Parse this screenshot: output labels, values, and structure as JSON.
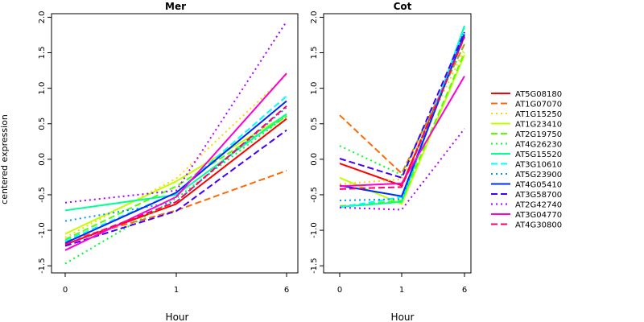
{
  "chart_data": [
    {
      "type": "line",
      "title": "Mer",
      "xlabel": "Hour",
      "ylabel": "centered expression",
      "x": [
        "0",
        "1",
        "6"
      ],
      "ylim": [
        -1.6,
        2.05
      ],
      "yticks": [
        -1.5,
        -1.0,
        -0.5,
        0.0,
        0.5,
        1.0,
        1.5,
        2.0
      ],
      "yticklabels": [
        "-1.5",
        "-1.0",
        "-0.5",
        "0.0",
        "0.5",
        "1.0",
        "1.5",
        "2.0"
      ],
      "grid": false,
      "series": [
        {
          "name": "AT5G08180",
          "color": "#ff0000",
          "dash": "solid",
          "values": [
            -1.2,
            -0.63,
            0.57
          ]
        },
        {
          "name": "AT1G07070",
          "color": "#ff6a00",
          "dash": "dashed",
          "values": [
            -1.15,
            -0.72,
            -0.16
          ]
        },
        {
          "name": "AT1G15250",
          "color": "#ffd500",
          "dash": "dotted",
          "values": [
            -1.1,
            -0.27,
            1.19
          ]
        },
        {
          "name": "AT1G23410",
          "color": "#bfff00",
          "dash": "solid",
          "values": [
            -1.05,
            -0.31,
            0.63
          ]
        },
        {
          "name": "AT2G19750",
          "color": "#55ff00",
          "dash": "dashed",
          "values": [
            -1.13,
            -0.38,
            0.6
          ]
        },
        {
          "name": "AT4G26230",
          "color": "#00ff2a",
          "dash": "dotted",
          "values": [
            -1.47,
            -0.55,
            0.61
          ]
        },
        {
          "name": "AT5G15520",
          "color": "#00ff95",
          "dash": "solid",
          "values": [
            -0.72,
            -0.5,
            0.64
          ]
        },
        {
          "name": "AT3G10610",
          "color": "#00ffff",
          "dash": "dashed",
          "values": [
            -1.15,
            -0.47,
            0.89
          ]
        },
        {
          "name": "AT5G23900",
          "color": "#0095ff",
          "dash": "dotted",
          "values": [
            -0.87,
            -0.6,
            0.73
          ]
        },
        {
          "name": "AT4G05410",
          "color": "#002aff",
          "dash": "solid",
          "values": [
            -1.18,
            -0.47,
            0.82
          ]
        },
        {
          "name": "AT3G58700",
          "color": "#4000ff",
          "dash": "dashed",
          "values": [
            -1.22,
            -0.73,
            0.41
          ]
        },
        {
          "name": "AT2G42740",
          "color": "#aa00ff",
          "dash": "dotted",
          "values": [
            -0.61,
            -0.44,
            1.94
          ]
        },
        {
          "name": "AT3G04770",
          "color": "#ff00d4",
          "dash": "solid",
          "values": [
            -1.28,
            -0.53,
            1.21
          ]
        },
        {
          "name": "AT4G30800",
          "color": "#ff006a",
          "dash": "dashed",
          "values": [
            -1.2,
            -0.6,
            0.75
          ]
        }
      ]
    },
    {
      "type": "line",
      "title": "Cot",
      "xlabel": "Hour",
      "ylabel": "",
      "x": [
        "0",
        "1",
        "6"
      ],
      "ylim": [
        -1.6,
        2.05
      ],
      "yticks": [
        -1.5,
        -1.0,
        -0.5,
        0.0,
        0.5,
        1.0,
        1.5,
        2.0
      ],
      "yticklabels": [
        "-1.5",
        "-1.0",
        "-0.5",
        "0.0",
        "0.5",
        "1.0",
        "1.5",
        "2.0"
      ],
      "grid": false,
      "series": [
        {
          "name": "AT5G08180",
          "color": "#ff0000",
          "dash": "solid",
          "values": [
            -0.06,
            -0.37,
            1.73
          ]
        },
        {
          "name": "AT1G07070",
          "color": "#ff6a00",
          "dash": "dashed",
          "values": [
            0.62,
            -0.2,
            1.62
          ]
        },
        {
          "name": "AT1G15250",
          "color": "#ffd500",
          "dash": "dotted",
          "values": [
            -0.35,
            -0.28,
            1.55
          ]
        },
        {
          "name": "AT1G23410",
          "color": "#bfff00",
          "dash": "solid",
          "values": [
            -0.26,
            -0.63,
            1.47
          ]
        },
        {
          "name": "AT2G19750",
          "color": "#55ff00",
          "dash": "dashed",
          "values": [
            -0.66,
            -0.58,
            1.5
          ]
        },
        {
          "name": "AT4G26230",
          "color": "#00ff2a",
          "dash": "dotted",
          "values": [
            0.19,
            -0.22,
            1.62
          ]
        },
        {
          "name": "AT5G15520",
          "color": "#00ff95",
          "dash": "solid",
          "values": [
            -0.67,
            -0.6,
            1.88
          ]
        },
        {
          "name": "AT3G10610",
          "color": "#00ffff",
          "dash": "dashed",
          "values": [
            -0.68,
            -0.53,
            1.85
          ]
        },
        {
          "name": "AT5G23900",
          "color": "#0095ff",
          "dash": "dotted",
          "values": [
            -0.58,
            -0.56,
            1.8
          ]
        },
        {
          "name": "AT4G05410",
          "color": "#002aff",
          "dash": "solid",
          "values": [
            -0.37,
            -0.52,
            1.76
          ]
        },
        {
          "name": "AT3G58700",
          "color": "#4000ff",
          "dash": "dashed",
          "values": [
            0.01,
            -0.26,
            1.79
          ]
        },
        {
          "name": "AT2G42740",
          "color": "#aa00ff",
          "dash": "dotted",
          "values": [
            -0.68,
            -0.71,
            0.43
          ]
        },
        {
          "name": "AT3G04770",
          "color": "#ff00d4",
          "dash": "solid",
          "values": [
            -0.38,
            -0.34,
            1.17
          ]
        },
        {
          "name": "AT4G30800",
          "color": "#ff006a",
          "dash": "dashed",
          "values": [
            -0.42,
            -0.39,
            1.72
          ]
        }
      ]
    }
  ],
  "legend": {
    "placement": "right",
    "entries": [
      {
        "name": "AT5G08180",
        "color": "#ff0000",
        "dash": "solid"
      },
      {
        "name": "AT1G07070",
        "color": "#ff6a00",
        "dash": "dashed"
      },
      {
        "name": "AT1G15250",
        "color": "#ffd500",
        "dash": "dotted"
      },
      {
        "name": "AT1G23410",
        "color": "#bfff00",
        "dash": "solid"
      },
      {
        "name": "AT2G19750",
        "color": "#55ff00",
        "dash": "dashed"
      },
      {
        "name": "AT4G26230",
        "color": "#00ff2a",
        "dash": "dotted"
      },
      {
        "name": "AT5G15520",
        "color": "#00ff95",
        "dash": "solid"
      },
      {
        "name": "AT3G10610",
        "color": "#00ffff",
        "dash": "dashed"
      },
      {
        "name": "AT5G23900",
        "color": "#0095ff",
        "dash": "dotted"
      },
      {
        "name": "AT4G05410",
        "color": "#002aff",
        "dash": "solid"
      },
      {
        "name": "AT3G58700",
        "color": "#4000ff",
        "dash": "dashed"
      },
      {
        "name": "AT2G42740",
        "color": "#aa00ff",
        "dash": "dotted"
      },
      {
        "name": "AT3G04770",
        "color": "#ff00d4",
        "dash": "solid"
      },
      {
        "name": "AT4G30800",
        "color": "#ff006a",
        "dash": "dashed"
      }
    ]
  }
}
